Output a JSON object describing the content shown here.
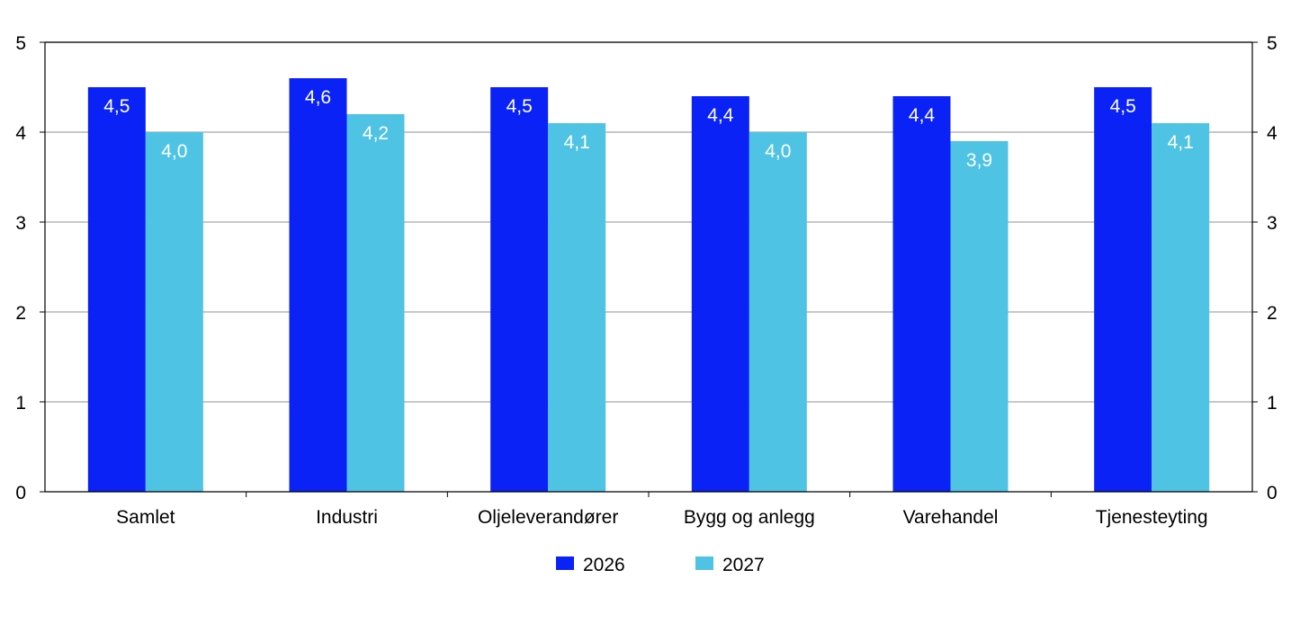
{
  "chart_data": {
    "type": "bar",
    "categories": [
      "Samlet",
      "Industri",
      "Oljeleverandører",
      "Bygg og anlegg",
      "Varehandel",
      "Tjenesteyting"
    ],
    "series": [
      {
        "name": "2026",
        "color": "#0a22f5",
        "values": [
          4.5,
          4.6,
          4.5,
          4.4,
          4.4,
          4.5
        ],
        "labels": [
          "4,5",
          "4,6",
          "4,5",
          "4,4",
          "4,4",
          "4,5"
        ]
      },
      {
        "name": "2027",
        "color": "#4fc3e3",
        "values": [
          4.0,
          4.2,
          4.1,
          4.0,
          3.9,
          4.1
        ],
        "labels": [
          "4,0",
          "4,2",
          "4,1",
          "4,0",
          "3,9",
          "4,1"
        ]
      }
    ],
    "ylim": [
      0,
      5
    ],
    "yticks": [
      "0",
      "1",
      "2",
      "3",
      "4",
      "5"
    ],
    "secondary_yaxis": true,
    "grid": true,
    "legend_position": "bottom-center",
    "title": "",
    "xlabel": "",
    "ylabel": ""
  }
}
